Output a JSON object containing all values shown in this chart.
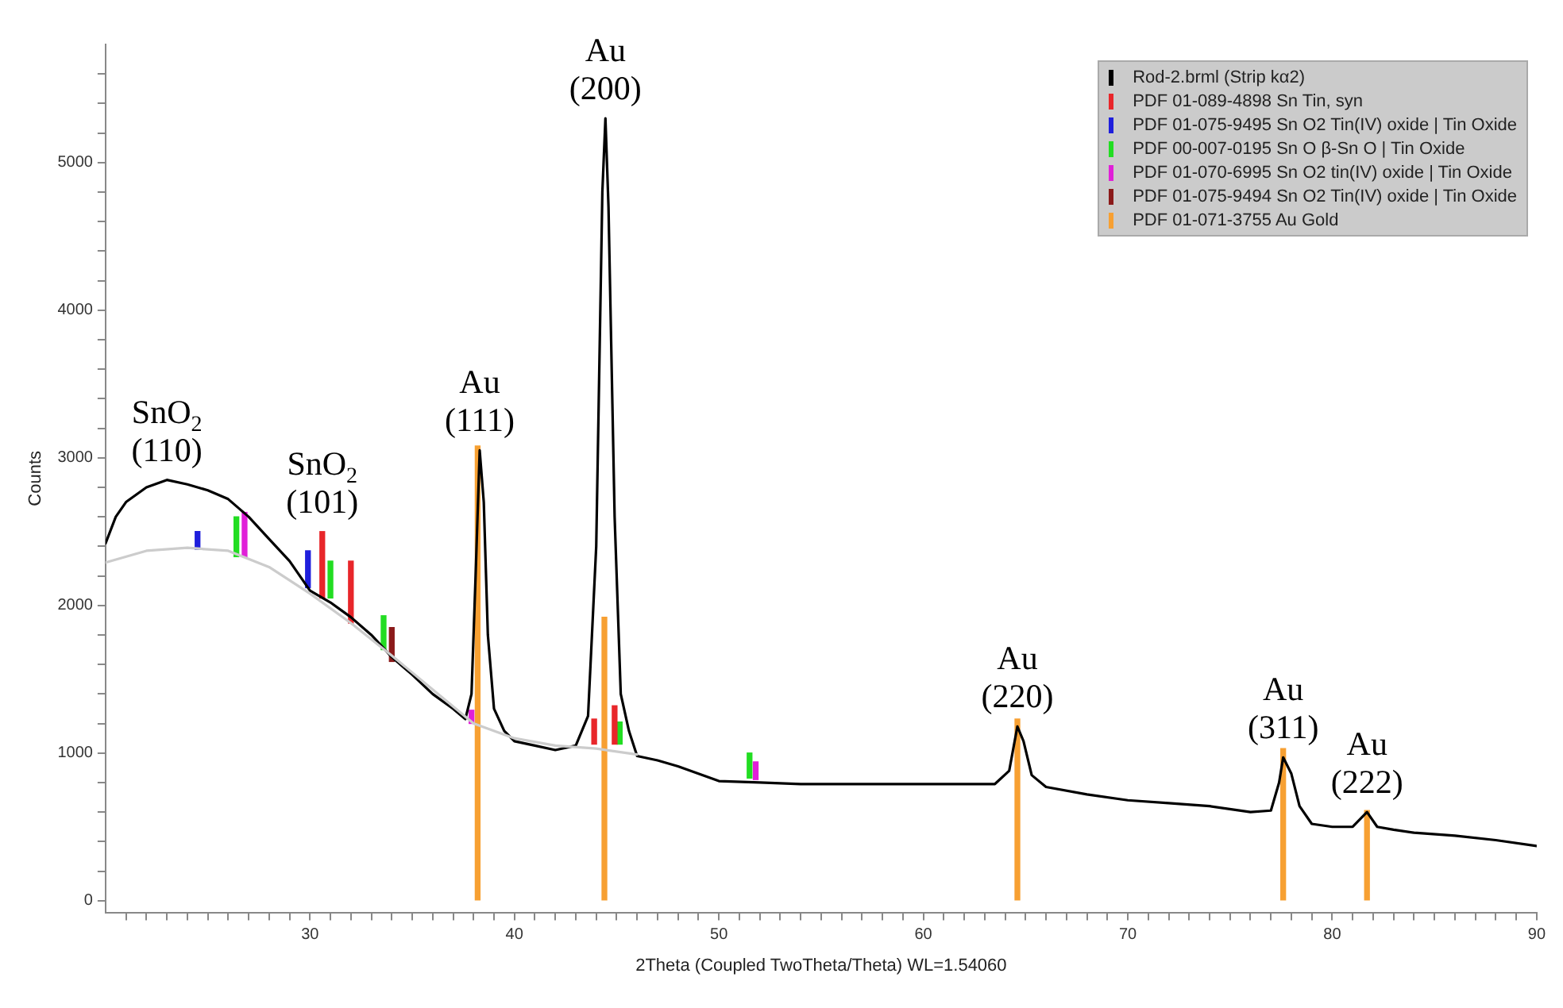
{
  "chart_data": {
    "type": "line",
    "xlabel": "2Theta (Coupled TwoTheta/Theta) WL=1.54060",
    "ylabel": "Counts",
    "legend": "top right",
    "grid": false,
    "marker": "none",
    "line_style": "solid",
    "xlim": [
      20,
      90
    ],
    "ylim": [
      -80,
      5800
    ],
    "xticks": [
      {
        "value": 21,
        "label": null
      },
      {
        "value": 22,
        "label": null
      },
      {
        "value": 23,
        "label": null
      },
      {
        "value": 24,
        "label": null
      },
      {
        "value": 25,
        "label": null
      },
      {
        "value": 26,
        "label": null
      },
      {
        "value": 27,
        "label": null
      },
      {
        "value": 28,
        "label": null
      },
      {
        "value": 29,
        "label": null
      },
      30,
      {
        "value": 31,
        "label": null
      },
      {
        "value": 32,
        "label": null
      },
      {
        "value": 33,
        "label": null
      },
      {
        "value": 34,
        "label": null
      },
      {
        "value": 35,
        "label": null
      },
      {
        "value": 36,
        "label": null
      },
      {
        "value": 37,
        "label": null
      },
      {
        "value": 38,
        "label": null
      },
      {
        "value": 39,
        "label": null
      },
      40,
      {
        "value": 41,
        "label": null
      },
      {
        "value": 42,
        "label": null
      },
      {
        "value": 43,
        "label": null
      },
      {
        "value": 44,
        "label": null
      },
      {
        "value": 45,
        "label": null
      },
      {
        "value": 46,
        "label": null
      },
      {
        "value": 47,
        "label": null
      },
      {
        "value": 48,
        "label": null
      },
      {
        "value": 49,
        "label": null
      },
      50,
      {
        "value": 51,
        "label": null
      },
      {
        "value": 52,
        "label": null
      },
      {
        "value": 53,
        "label": null
      },
      {
        "value": 54,
        "label": null
      },
      {
        "value": 55,
        "label": null
      },
      {
        "value": 56,
        "label": null
      },
      {
        "value": 57,
        "label": null
      },
      {
        "value": 58,
        "label": null
      },
      {
        "value": 59,
        "label": null
      },
      60,
      {
        "value": 61,
        "label": null
      },
      {
        "value": 62,
        "label": null
      },
      {
        "value": 63,
        "label": null
      },
      {
        "value": 64,
        "label": null
      },
      {
        "value": 65,
        "label": null
      },
      {
        "value": 66,
        "label": null
      },
      {
        "value": 67,
        "label": null
      },
      {
        "value": 68,
        "label": null
      },
      {
        "value": 69,
        "label": null
      },
      70,
      {
        "value": 71,
        "label": null
      },
      {
        "value": 72,
        "label": null
      },
      {
        "value": 73,
        "label": null
      },
      {
        "value": 74,
        "label": null
      },
      {
        "value": 75,
        "label": null
      },
      {
        "value": 76,
        "label": null
      },
      {
        "value": 77,
        "label": null
      },
      {
        "value": 78,
        "label": null
      },
      {
        "value": 79,
        "label": null
      },
      80,
      {
        "value": 81,
        "label": null
      },
      {
        "value": 82,
        "label": null
      },
      {
        "value": 83,
        "label": null
      },
      {
        "value": 84,
        "label": null
      },
      {
        "value": 85,
        "label": null
      },
      {
        "value": 86,
        "label": null
      },
      {
        "value": 87,
        "label": null
      },
      {
        "value": 88,
        "label": null
      },
      {
        "value": 89,
        "label": null
      },
      90
    ],
    "yticks": [
      0,
      {
        "value": 200,
        "label": null
      },
      {
        "value": 400,
        "label": null
      },
      {
        "value": 600,
        "label": null
      },
      {
        "value": 800,
        "label": null
      },
      1000,
      {
        "value": 1200,
        "label": null
      },
      {
        "value": 1400,
        "label": null
      },
      {
        "value": 1600,
        "label": null
      },
      {
        "value": 1800,
        "label": null
      },
      2000,
      {
        "value": 2200,
        "label": null
      },
      {
        "value": 2400,
        "label": null
      },
      {
        "value": 2600,
        "label": null
      },
      {
        "value": 2800,
        "label": null
      },
      3000,
      {
        "value": 3200,
        "label": null
      },
      {
        "value": 3400,
        "label": null
      },
      {
        "value": 3600,
        "label": null
      },
      {
        "value": 3800,
        "label": null
      },
      4000,
      {
        "value": 4200,
        "label": null
      },
      {
        "value": 4400,
        "label": null
      },
      {
        "value": 4600,
        "label": null
      },
      {
        "value": 4800,
        "label": null
      },
      5000,
      {
        "value": 5200,
        "label": null
      },
      {
        "value": 5400,
        "label": null
      },
      {
        "value": 5600,
        "label": null
      }
    ],
    "series": [
      {
        "color": "#cccccc",
        "x": [
          20,
          22,
          24,
          26,
          28,
          30,
          32,
          34,
          36,
          38,
          40,
          42,
          44,
          46
        ],
        "values": [
          2290,
          2370,
          2390,
          2370,
          2260,
          2080,
          1880,
          1660,
          1430,
          1200,
          1100,
          1050,
          1030,
          990
        ]
      },
      {
        "name": "Rod-2.brml (Strip kα2)",
        "color": "#000000",
        "x": [
          20,
          20.5,
          21,
          22,
          23,
          24,
          25,
          26,
          27,
          28,
          29,
          30,
          31,
          32,
          33,
          34,
          35,
          36,
          37,
          37.6,
          37.9,
          38.1,
          38.3,
          38.5,
          38.7,
          39,
          39.5,
          40,
          41,
          42,
          43,
          43.6,
          44,
          44.3,
          44.45,
          44.6,
          44.9,
          45.2,
          45.6,
          46,
          47,
          48,
          49,
          50,
          52,
          54,
          56,
          58,
          60,
          62,
          63.5,
          64.2,
          64.6,
          64.9,
          65.3,
          66,
          68,
          70,
          72,
          74,
          76,
          77,
          77.4,
          77.6,
          78,
          78.4,
          79,
          80,
          81,
          81.7,
          82.2,
          83,
          84,
          86,
          88,
          90
        ],
        "values": [
          2420,
          2600,
          2700,
          2800,
          2850,
          2820,
          2780,
          2720,
          2600,
          2450,
          2300,
          2100,
          2020,
          1920,
          1800,
          1650,
          1530,
          1400,
          1300,
          1230,
          1400,
          2200,
          3050,
          2700,
          1800,
          1300,
          1150,
          1080,
          1050,
          1020,
          1050,
          1250,
          2400,
          4800,
          5300,
          4700,
          2600,
          1400,
          1150,
          980,
          950,
          910,
          860,
          810,
          800,
          790,
          790,
          790,
          790,
          790,
          790,
          880,
          1180,
          1080,
          850,
          770,
          720,
          680,
          660,
          640,
          600,
          610,
          800,
          970,
          860,
          640,
          520,
          500,
          500,
          600,
          500,
          480,
          460,
          440,
          410,
          370
        ]
      },
      {
        "type": "bar",
        "name": "PDF 01-089-4898 Sn Tin, syn",
        "color": "#e8262a",
        "x": [
          30.6,
          32.0,
          43.9,
          44.9
        ],
        "base": [
          2050,
          1880,
          1060,
          1060
        ],
        "values": [
          450,
          420,
          170,
          260
        ]
      },
      {
        "type": "bar",
        "name": "PDF 01-075-9495 Sn O2 Tin(IV) oxide | Tin Oxide",
        "color": "#1f1fdc",
        "x": [
          24.5,
          29.9
        ],
        "base": [
          2380,
          2120
        ],
        "values": [
          120,
          250
        ]
      },
      {
        "type": "bar",
        "name": "PDF 00-007-0195 Sn O β-Sn O | Tin Oxide",
        "color": "#22dd22",
        "x": [
          26.4,
          31.0,
          33.6,
          45.15,
          51.5
        ],
        "base": [
          2330,
          2050,
          1700,
          1060,
          830
        ],
        "values": [
          270,
          250,
          230,
          150,
          170
        ]
      },
      {
        "type": "bar",
        "name": "PDF 01-070-6995 Sn O2 tin(IV) oxide | Tin Oxide",
        "color": "#e020d8",
        "x": [
          26.8,
          37.9,
          51.8
        ],
        "base": [
          2330,
          1200,
          820
        ],
        "values": [
          300,
          90,
          120
        ]
      },
      {
        "type": "bar",
        "name": "PDF 01-075-9494 Sn O2 Tin(IV) oxide | Tin Oxide",
        "color": "#8b1a1a",
        "x": [
          34.0
        ],
        "base": [
          1620
        ],
        "values": [
          230
        ]
      },
      {
        "type": "bar",
        "name": "PDF 01-071-3755 Au Gold",
        "color": "#f7a032",
        "x": [
          38.2,
          44.4,
          64.6,
          77.6,
          81.7
        ],
        "base": [
          0,
          0,
          0,
          0,
          0
        ],
        "values": [
          3080,
          1920,
          1230,
          1030,
          610
        ]
      }
    ],
    "annotations": [
      {
        "text": "SnO$_{2}$\n(110)",
        "x": 23,
        "y": 2850
      },
      {
        "text": "SnO$_{2}$\n(101)",
        "x": 30.6,
        "y": 2500
      },
      {
        "text": "Au\n(111)",
        "x": 38.3,
        "y": 3050
      },
      {
        "text": "Au\n(200)",
        "x": 44.45,
        "y": 5300
      },
      {
        "text": "Au\n(220)",
        "x": 64.6,
        "y": 1180
      },
      {
        "text": "Au\n(311)",
        "x": 77.6,
        "y": 970
      },
      {
        "text": "Au\n(222)",
        "x": 81.7,
        "y": 600
      }
    ]
  }
}
